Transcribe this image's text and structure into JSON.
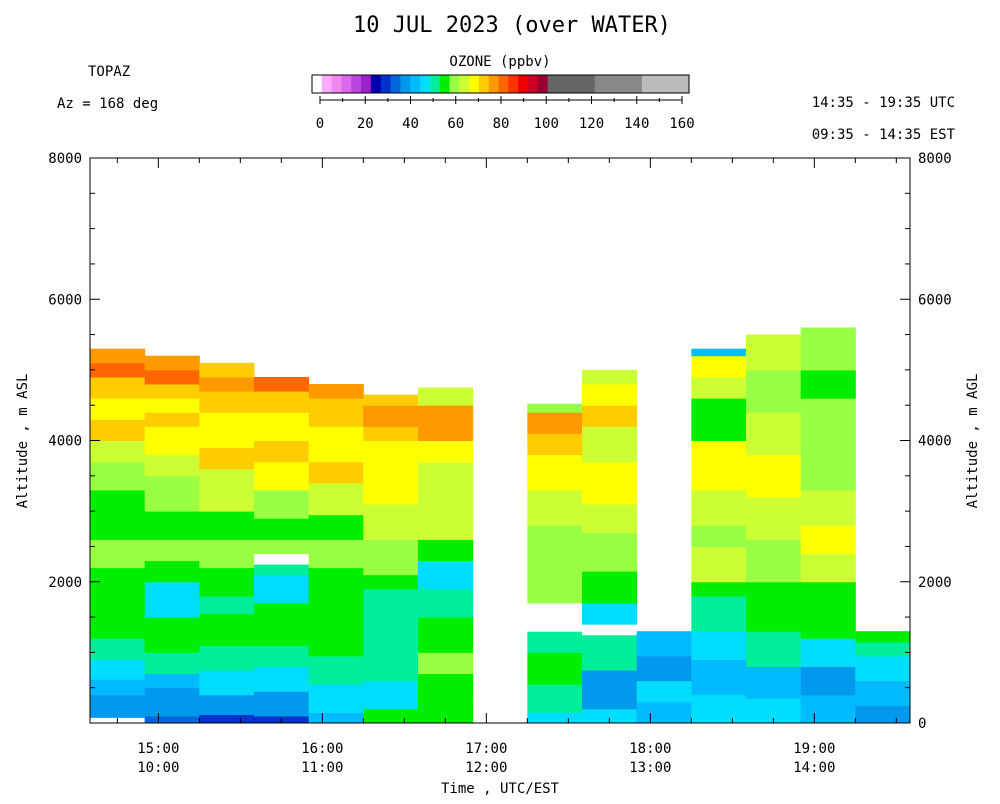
{
  "chart_data": {
    "type": "heatmap",
    "title": "10 JUL 2023 (over WATER)",
    "instrument": "TOPAZ",
    "azimuth": "Az = 168 deg",
    "time_range_utc": "14:35 - 19:35 UTC",
    "time_range_est": "09:35 - 14:35 EST",
    "colorbar": {
      "title": "OZONE (ppbv)",
      "ticks": [
        "0",
        "20",
        "40",
        "60",
        "80",
        "100",
        "120",
        "140",
        "160"
      ],
      "range": [
        0,
        160
      ],
      "colors": [
        "#ffffff",
        "#ffaaff",
        "#ee88ee",
        "#dd66ee",
        "#bb44dd",
        "#9922cc",
        "#0000aa",
        "#0033cc",
        "#0066dd",
        "#0099ee",
        "#00bbff",
        "#00ddff",
        "#00ee99",
        "#00ee00",
        "#99ff44",
        "#ccff33",
        "#ffff00",
        "#ffcc00",
        "#ff9900",
        "#ff6600",
        "#ff3300",
        "#ee0000",
        "#cc0022",
        "#990033",
        "#666666",
        "#888888",
        "#bbbbbb"
      ]
    },
    "xlabel": "Time , UTC/EST",
    "ylabel_left": "Altitude , m ASL",
    "ylabel_right": "Altitude , m AGL",
    "xlim_utc_hours": [
      14.5833,
      19.5833
    ],
    "ylim": [
      0,
      8000
    ],
    "x_ticks": [
      {
        "utc": "15:00",
        "est": "10:00",
        "hour": 15
      },
      {
        "utc": "16:00",
        "est": "11:00",
        "hour": 16
      },
      {
        "utc": "17:00",
        "est": "12:00",
        "hour": 17
      },
      {
        "utc": "18:00",
        "est": "13:00",
        "hour": 18
      },
      {
        "utc": "19:00",
        "est": "14:00",
        "hour": 19
      }
    ],
    "y_ticks_left": [
      "8000",
      "6000",
      "4000",
      "2000"
    ],
    "y_ticks_right": [
      "8000",
      "6000",
      "4000",
      "2000",
      "0"
    ],
    "profiles": [
      {
        "start": "14:35",
        "end": "14:55",
        "bands": [
          [
            0,
            80,
            "#ffffff"
          ],
          [
            80,
            400,
            "#0099ee"
          ],
          [
            400,
            620,
            "#00bbff"
          ],
          [
            620,
            900,
            "#00ddff"
          ],
          [
            900,
            1200,
            "#00ee99"
          ],
          [
            1200,
            1700,
            "#00ee00"
          ],
          [
            1700,
            2200,
            "#00ee00"
          ],
          [
            2200,
            2600,
            "#99ff44"
          ],
          [
            2600,
            2900,
            "#00ee00"
          ],
          [
            2900,
            3300,
            "#00ee00"
          ],
          [
            3300,
            3700,
            "#99ff44"
          ],
          [
            3700,
            4000,
            "#ccff33"
          ],
          [
            4000,
            4300,
            "#ffcc00"
          ],
          [
            4300,
            4600,
            "#ffff00"
          ],
          [
            4600,
            4900,
            "#ffcc00"
          ],
          [
            4900,
            5100,
            "#ff6600"
          ],
          [
            5100,
            5300,
            "#ff9900"
          ]
        ]
      },
      {
        "start": "14:55",
        "end": "15:15",
        "bands": [
          [
            0,
            100,
            "#0066dd"
          ],
          [
            100,
            500,
            "#0099ee"
          ],
          [
            500,
            700,
            "#00bbff"
          ],
          [
            700,
            1000,
            "#00ee99"
          ],
          [
            1000,
            1500,
            "#00ee00"
          ],
          [
            1500,
            2000,
            "#00ddff"
          ],
          [
            2000,
            2300,
            "#00ee00"
          ],
          [
            2300,
            2600,
            "#99ff44"
          ],
          [
            2600,
            3000,
            "#00ee00"
          ],
          [
            3000,
            3500,
            "#99ff44"
          ],
          [
            3500,
            3800,
            "#ccff33"
          ],
          [
            3800,
            4200,
            "#ffff00"
          ],
          [
            4200,
            4400,
            "#ffcc00"
          ],
          [
            4400,
            4600,
            "#ffff00"
          ],
          [
            4600,
            4800,
            "#ffcc00"
          ],
          [
            4800,
            5000,
            "#ff6600"
          ],
          [
            5000,
            5200,
            "#ff9900"
          ]
        ]
      },
      {
        "start": "15:15",
        "end": "15:35",
        "bands": [
          [
            0,
            120,
            "#0033cc"
          ],
          [
            120,
            400,
            "#0099ee"
          ],
          [
            400,
            750,
            "#00ddff"
          ],
          [
            750,
            1100,
            "#00ee99"
          ],
          [
            1100,
            1550,
            "#00ee00"
          ],
          [
            1550,
            1800,
            "#00ee99"
          ],
          [
            1800,
            2200,
            "#00ee00"
          ],
          [
            2200,
            2600,
            "#99ff44"
          ],
          [
            2600,
            3000,
            "#00ee00"
          ],
          [
            3000,
            3600,
            "#ccff33"
          ],
          [
            3600,
            3900,
            "#ffcc00"
          ],
          [
            3900,
            4400,
            "#ffff00"
          ],
          [
            4400,
            4700,
            "#ffcc00"
          ],
          [
            4700,
            4900,
            "#ff9900"
          ],
          [
            4900,
            5100,
            "#ffcc00"
          ]
        ]
      },
      {
        "start": "15:35",
        "end": "15:55",
        "bands": [
          [
            0,
            100,
            "#0033cc"
          ],
          [
            100,
            450,
            "#0099ee"
          ],
          [
            450,
            800,
            "#00ddff"
          ],
          [
            800,
            1100,
            "#00ee99"
          ],
          [
            1100,
            1700,
            "#00ee00"
          ],
          [
            1700,
            2100,
            "#00ddff"
          ],
          [
            2100,
            2250,
            "#00ee99"
          ],
          [
            2250,
            2400,
            "#ffffff"
          ],
          [
            2400,
            2600,
            "#99ff44"
          ],
          [
            2600,
            2900,
            "#00ee00"
          ],
          [
            2900,
            3300,
            "#99ff44"
          ],
          [
            3300,
            3700,
            "#ffff00"
          ],
          [
            3700,
            4000,
            "#ffcc00"
          ],
          [
            4000,
            4400,
            "#ffff00"
          ],
          [
            4400,
            4700,
            "#ffcc00"
          ],
          [
            4700,
            4900,
            "#ff6600"
          ]
        ]
      },
      {
        "start": "15:55",
        "end": "16:15",
        "bands": [
          [
            0,
            150,
            "#00bbff"
          ],
          [
            150,
            550,
            "#00ddff"
          ],
          [
            550,
            950,
            "#00ee99"
          ],
          [
            950,
            1400,
            "#00ee00"
          ],
          [
            1400,
            1750,
            "#00ee00"
          ],
          [
            1750,
            2200,
            "#00ee00"
          ],
          [
            2200,
            2600,
            "#99ff44"
          ],
          [
            2600,
            2950,
            "#00ee00"
          ],
          [
            2950,
            3400,
            "#ccff33"
          ],
          [
            3400,
            3700,
            "#ffcc00"
          ],
          [
            3700,
            4200,
            "#ffff00"
          ],
          [
            4200,
            4600,
            "#ffcc00"
          ],
          [
            4600,
            4800,
            "#ff9900"
          ]
        ]
      },
      {
        "start": "16:15",
        "end": "16:35",
        "bands": [
          [
            0,
            200,
            "#00ee00"
          ],
          [
            200,
            600,
            "#00ddff"
          ],
          [
            600,
            1000,
            "#00ee99"
          ],
          [
            1000,
            1500,
            "#00ee99"
          ],
          [
            1500,
            1900,
            "#00ee99"
          ],
          [
            1900,
            2100,
            "#00ee00"
          ],
          [
            2100,
            2600,
            "#99ff44"
          ],
          [
            2600,
            3100,
            "#ccff33"
          ],
          [
            3100,
            3600,
            "#ffff00"
          ],
          [
            3600,
            4000,
            "#ffff00"
          ],
          [
            4000,
            4200,
            "#ffcc00"
          ],
          [
            4200,
            4500,
            "#ff9900"
          ],
          [
            4500,
            4650,
            "#ffcc00"
          ]
        ]
      },
      {
        "start": "16:35",
        "end": "16:55",
        "bands": [
          [
            0,
            300,
            "#00ee00"
          ],
          [
            300,
            700,
            "#00ee00"
          ],
          [
            700,
            1000,
            "#99ff44"
          ],
          [
            1000,
            1500,
            "#00ee00"
          ],
          [
            1500,
            1900,
            "#00ee99"
          ],
          [
            1900,
            2300,
            "#00ddff"
          ],
          [
            2300,
            2600,
            "#00ee00"
          ],
          [
            2600,
            3200,
            "#ccff33"
          ],
          [
            3200,
            3700,
            "#ccff33"
          ],
          [
            3700,
            4000,
            "#ffff00"
          ],
          [
            4000,
            4500,
            "#ff9900"
          ],
          [
            4500,
            4750,
            "#ccff33"
          ]
        ]
      },
      {
        "start": "17:15",
        "end": "17:35",
        "bands": [
          [
            0,
            150,
            "#00ddff"
          ],
          [
            150,
            550,
            "#00ee99"
          ],
          [
            550,
            1000,
            "#00ee00"
          ],
          [
            1000,
            1300,
            "#00ee99"
          ],
          [
            1300,
            1700,
            "#ffffff"
          ],
          [
            1700,
            2200,
            "#99ff44"
          ],
          [
            2200,
            2800,
            "#99ff44"
          ],
          [
            2800,
            3300,
            "#ccff33"
          ],
          [
            3300,
            3800,
            "#ffff00"
          ],
          [
            3800,
            4100,
            "#ffcc00"
          ],
          [
            4100,
            4400,
            "#ff9900"
          ],
          [
            4400,
            4520,
            "#99ff44"
          ]
        ]
      },
      {
        "start": "17:35",
        "end": "17:55",
        "bands": [
          [
            0,
            200,
            "#00ddff"
          ],
          [
            200,
            750,
            "#0099ee"
          ],
          [
            750,
            1100,
            "#00ee99"
          ],
          [
            1100,
            1250,
            "#00ee99"
          ],
          [
            1250,
            1400,
            "#ffffff"
          ],
          [
            1400,
            1700,
            "#00ddff"
          ],
          [
            1700,
            2150,
            "#00ee00"
          ],
          [
            2150,
            2700,
            "#99ff44"
          ],
          [
            2700,
            3100,
            "#ccff33"
          ],
          [
            3100,
            3700,
            "#ffff00"
          ],
          [
            3700,
            4200,
            "#ccff33"
          ],
          [
            4200,
            4500,
            "#ffcc00"
          ],
          [
            4500,
            4800,
            "#ffff00"
          ],
          [
            4800,
            5000,
            "#ccff33"
          ]
        ]
      },
      {
        "start": "17:55",
        "end": "18:15",
        "bands": [
          [
            0,
            300,
            "#00bbff"
          ],
          [
            300,
            600,
            "#00ddff"
          ],
          [
            600,
            950,
            "#0099ee"
          ],
          [
            950,
            1300,
            "#00bbff"
          ]
        ]
      },
      {
        "start": "18:15",
        "end": "18:35",
        "bands": [
          [
            0,
            400,
            "#00ddff"
          ],
          [
            400,
            900,
            "#00bbff"
          ],
          [
            900,
            1300,
            "#00ddff"
          ],
          [
            1300,
            1800,
            "#00ee99"
          ],
          [
            1800,
            2000,
            "#00ee00"
          ],
          [
            2000,
            2500,
            "#ccff33"
          ],
          [
            2500,
            2800,
            "#99ff44"
          ],
          [
            2800,
            3300,
            "#ccff33"
          ],
          [
            3300,
            4000,
            "#ffff00"
          ],
          [
            4000,
            4600,
            "#00ee00"
          ],
          [
            4600,
            4900,
            "#ccff33"
          ],
          [
            4900,
            5200,
            "#ffff00"
          ],
          [
            5200,
            5300,
            "#00bbff"
          ]
        ]
      },
      {
        "start": "18:35",
        "end": "18:55",
        "bands": [
          [
            0,
            350,
            "#00ddff"
          ],
          [
            350,
            800,
            "#00bbff"
          ],
          [
            800,
            1300,
            "#00ee99"
          ],
          [
            1300,
            1700,
            "#00ee00"
          ],
          [
            1700,
            2000,
            "#00ee00"
          ],
          [
            2000,
            2600,
            "#99ff44"
          ],
          [
            2600,
            3200,
            "#ccff33"
          ],
          [
            3200,
            3800,
            "#ffff00"
          ],
          [
            3800,
            4400,
            "#ccff33"
          ],
          [
            4400,
            5000,
            "#99ff44"
          ],
          [
            5000,
            5500,
            "#ccff33"
          ]
        ]
      },
      {
        "start": "18:55",
        "end": "19:15",
        "bands": [
          [
            0,
            400,
            "#00bbff"
          ],
          [
            400,
            800,
            "#0099ee"
          ],
          [
            800,
            1200,
            "#00ddff"
          ],
          [
            1200,
            1700,
            "#00ee00"
          ],
          [
            1700,
            2000,
            "#00ee00"
          ],
          [
            2000,
            2400,
            "#ccff33"
          ],
          [
            2400,
            2800,
            "#ffff00"
          ],
          [
            2800,
            3300,
            "#ccff33"
          ],
          [
            3300,
            3800,
            "#99ff44"
          ],
          [
            3800,
            4600,
            "#99ff44"
          ],
          [
            4600,
            5000,
            "#00ee00"
          ],
          [
            5000,
            5300,
            "#99ff44"
          ],
          [
            5300,
            5600,
            "#99ff44"
          ]
        ]
      },
      {
        "start": "19:15",
        "end": "19:35",
        "bands": [
          [
            0,
            250,
            "#0099ee"
          ],
          [
            250,
            600,
            "#00bbff"
          ],
          [
            600,
            950,
            "#00ddff"
          ],
          [
            950,
            1150,
            "#00ee99"
          ],
          [
            1150,
            1300,
            "#00ee00"
          ]
        ]
      }
    ]
  }
}
